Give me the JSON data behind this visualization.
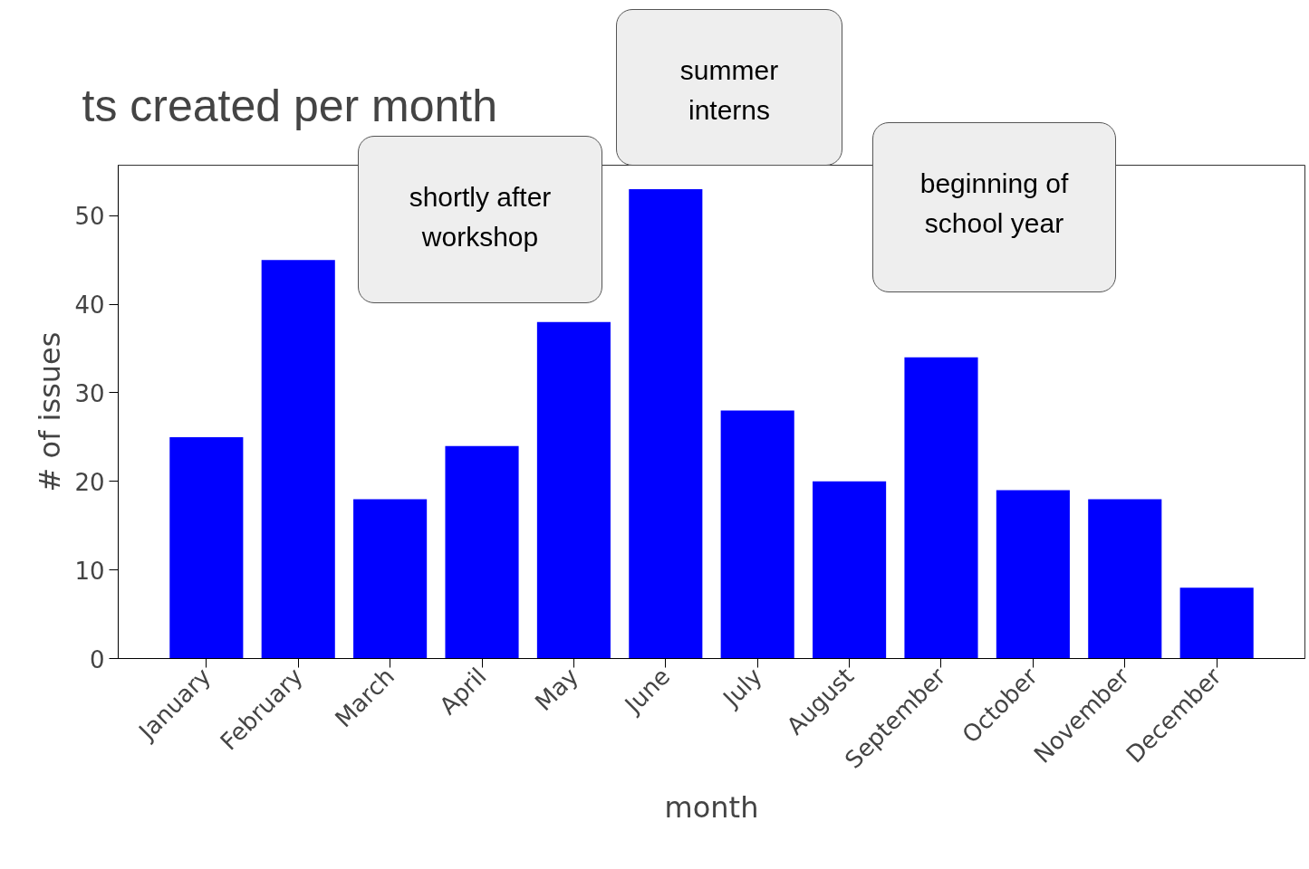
{
  "chart_data": {
    "type": "bar",
    "title": "ts created per month",
    "xlabel": "month",
    "ylabel": "# of issues",
    "categories": [
      "January",
      "February",
      "March",
      "April",
      "May",
      "June",
      "July",
      "August",
      "September",
      "October",
      "November",
      "December"
    ],
    "values": [
      25,
      45,
      18,
      24,
      38,
      53,
      28,
      20,
      34,
      19,
      18,
      8
    ],
    "color": "#0000ff",
    "ylim": [
      0,
      55.7
    ],
    "yticks": [
      0,
      10,
      20,
      30,
      40,
      50
    ],
    "grid": false,
    "annotations": [
      "shortly after\nworkshop",
      "summer\ninterns",
      "beginning of\nschool year"
    ]
  }
}
